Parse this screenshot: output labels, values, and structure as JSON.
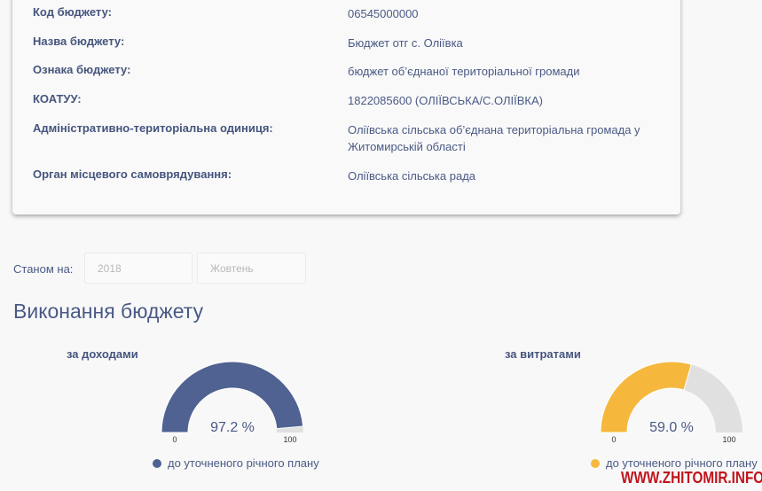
{
  "info": [
    {
      "label": "Код бюджету:",
      "value": "06545000000"
    },
    {
      "label": "Назва бюджету:",
      "value": "Бюджет отг с. Оліївка"
    },
    {
      "label": "Ознака бюджету:",
      "value": "бюджет об’єднаної територіальної громади"
    },
    {
      "label": "КОАТУУ:",
      "value": "1822085600 (ОЛІЇВСЬКА/С.ОЛІЇВКА)"
    },
    {
      "label": "Адміністративно-територіальна одиниця:",
      "value": "Оліївська сільська об’єднана територіальна громада у Житомирській області"
    },
    {
      "label": "Орган місцевого самоврядування:",
      "value": "Оліївська сільська рада"
    }
  ],
  "filter": {
    "label": "Станом на:",
    "year": "2018",
    "month": "Жовтень"
  },
  "section_title": "Виконання бюджету",
  "chart_data": [
    {
      "type": "gauge",
      "title": "за доходами",
      "value": 97.2,
      "value_label": "97.2 %",
      "min": 0,
      "max": 100,
      "min_label": "0",
      "max_label": "100",
      "legend": "до уточненого річного плану",
      "color": "#4f6291",
      "track_color": "#e0e0e0"
    },
    {
      "type": "gauge",
      "title": "за витратами",
      "value": 59.0,
      "value_label": "59.0 %",
      "min": 0,
      "max": 100,
      "min_label": "0",
      "max_label": "100",
      "legend": "до уточненого річного плану",
      "color": "#f5b83d",
      "track_color": "#e0e0e0"
    }
  ],
  "watermark": "WWW.ZHITOMIR.INFO"
}
